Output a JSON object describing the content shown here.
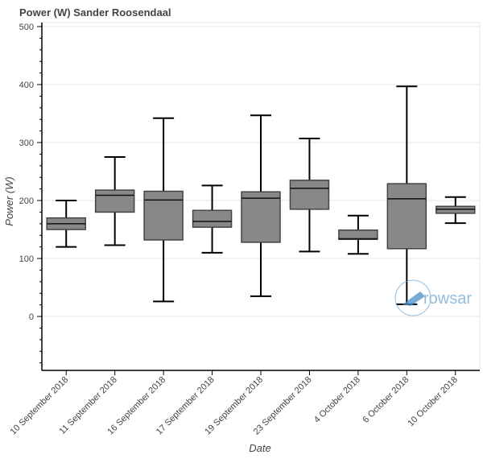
{
  "chart_data": {
    "type": "box",
    "title": "Power (W)  Sander Roosendaal",
    "xlabel": "Date",
    "ylabel": "Power (W)",
    "ylim": [
      -93,
      507
    ],
    "yticks": [
      0,
      100,
      200,
      300,
      400,
      500
    ],
    "grid": true,
    "categories": [
      "10 September 2018",
      "11 September 2018",
      "16 September 2018",
      "17 September 2018",
      "19 September 2018",
      "23 September 2018",
      "4 October 2018",
      "6 October 2018",
      "10 October 2018"
    ],
    "series": [
      {
        "lower": [
          120,
          123,
          26,
          110,
          35,
          112,
          108,
          21,
          161
        ],
        "q1": [
          150,
          180,
          132,
          154,
          128,
          185,
          133,
          117,
          178
        ],
        "median": [
          160,
          209,
          201,
          164,
          204,
          221,
          134,
          203,
          185
        ],
        "q3": [
          170,
          218,
          216,
          183,
          215,
          235,
          149,
          229,
          190
        ],
        "upper": [
          200,
          275,
          342,
          226,
          347,
          307,
          174,
          397,
          206
        ]
      }
    ],
    "box_color": "#888888",
    "whisker_color": "#000000",
    "watermark": "rowsand"
  }
}
